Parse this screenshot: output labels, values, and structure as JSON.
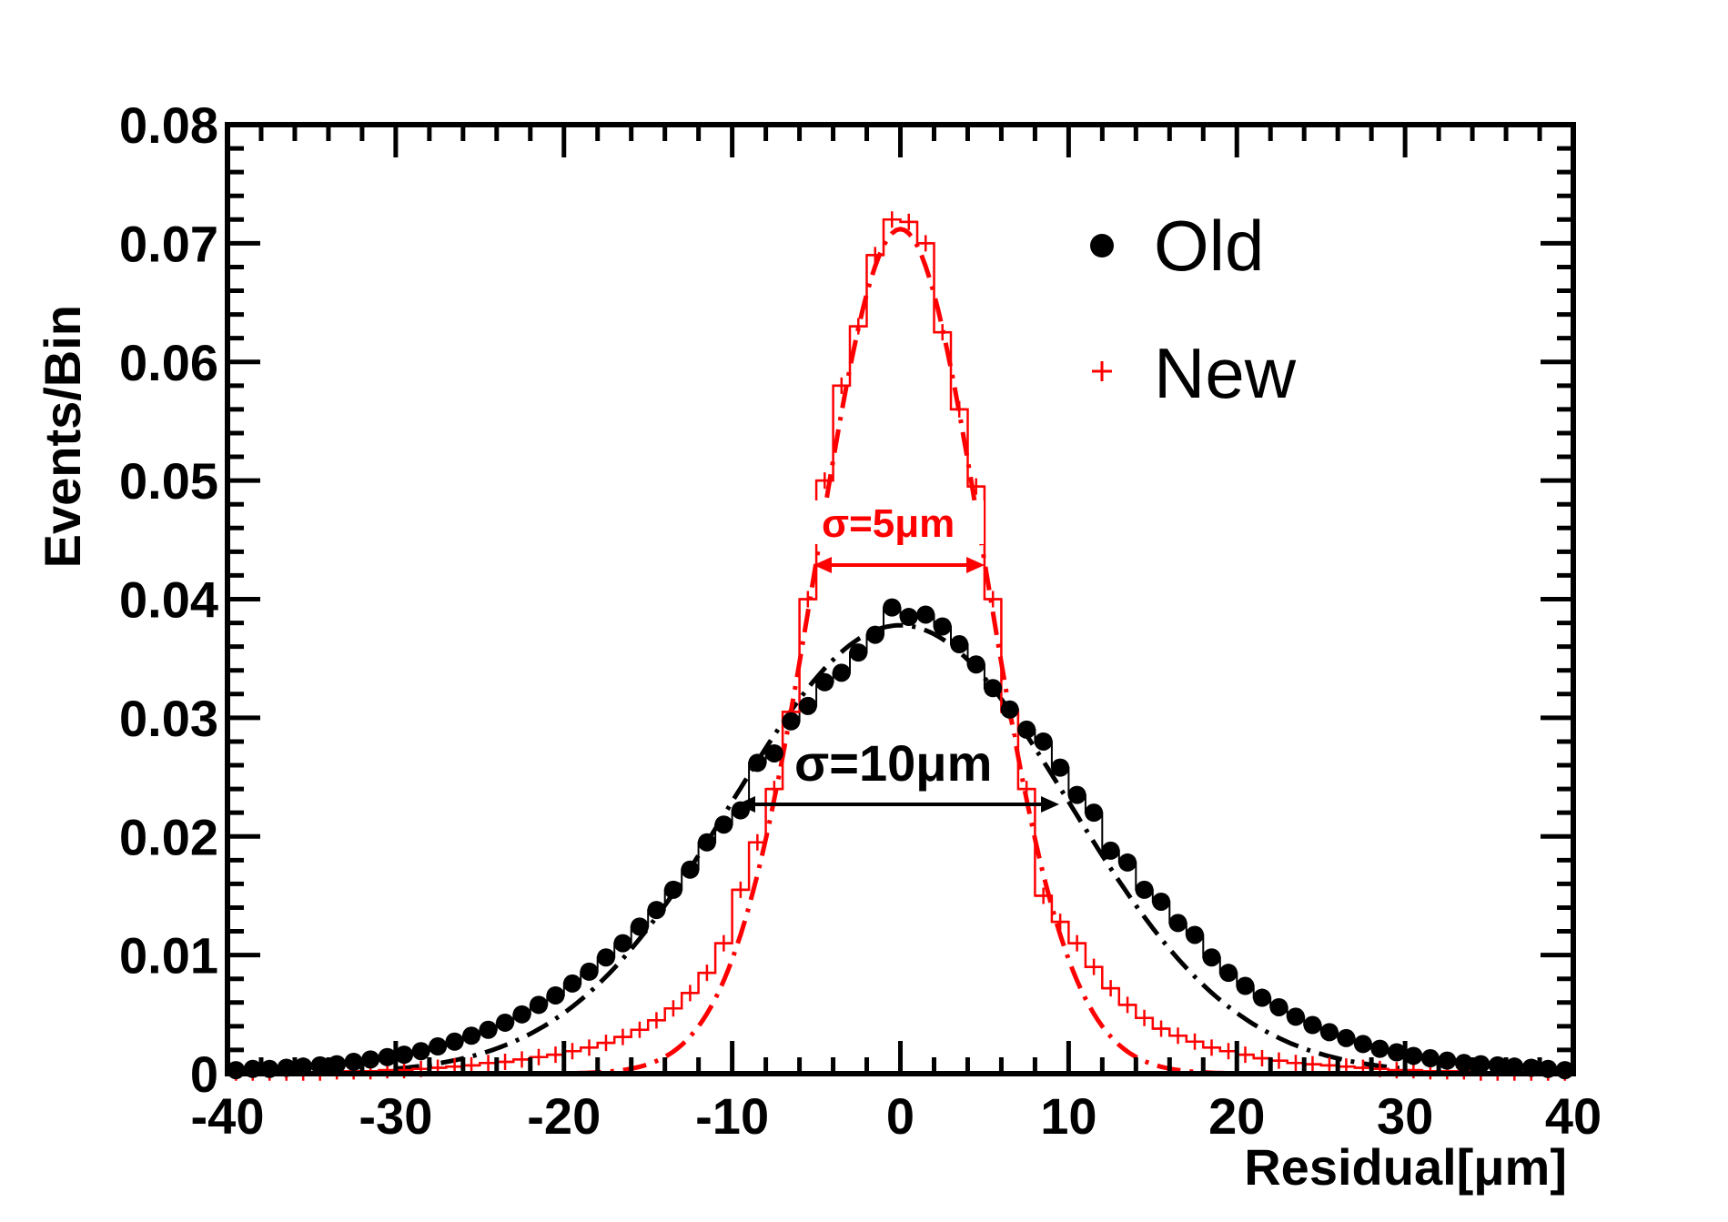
{
  "chart_data": {
    "type": "scatter",
    "xlabel": "Residual[μm]",
    "ylabel": "Events/Bin",
    "xlim": [
      -40,
      40
    ],
    "ylim": [
      0,
      0.08
    ],
    "x_ticks": [
      "-40",
      "-30",
      "-20",
      "-10",
      "0",
      "10",
      "20",
      "30",
      "40"
    ],
    "y_ticks": [
      "0",
      "0.01",
      "0.02",
      "0.03",
      "0.04",
      "0.05",
      "0.06",
      "0.07",
      "0.08"
    ],
    "grid": false,
    "legend_position": "top-right",
    "legend": [
      {
        "label": "Old",
        "marker": "filled-circle",
        "color": "#000000"
      },
      {
        "label": "New",
        "marker": "plus",
        "color": "#ff0000"
      }
    ],
    "annotations": [
      {
        "text": "σ=5μm",
        "color": "#ff0000"
      },
      {
        "text": "σ=10μm",
        "color": "#000000"
      }
    ],
    "series": [
      {
        "name": "Old",
        "color": "#000000",
        "marker": "filled-circle",
        "fit_sigma": 10,
        "fit_amplitude": 0.0378,
        "points": [
          [
            -39.5,
            0.0003
          ],
          [
            -38.5,
            0.0004
          ],
          [
            -37.5,
            0.0004
          ],
          [
            -36.5,
            0.0005
          ],
          [
            -35.5,
            0.0006
          ],
          [
            -34.5,
            0.0007
          ],
          [
            -33.5,
            0.0008
          ],
          [
            -32.5,
            0.001
          ],
          [
            -31.5,
            0.0012
          ],
          [
            -30.5,
            0.0014
          ],
          [
            -29.5,
            0.0016
          ],
          [
            -28.5,
            0.0019
          ],
          [
            -27.5,
            0.0023
          ],
          [
            -26.5,
            0.0027
          ],
          [
            -25.5,
            0.0032
          ],
          [
            -24.5,
            0.0037
          ],
          [
            -23.5,
            0.0043
          ],
          [
            -22.5,
            0.005
          ],
          [
            -21.5,
            0.0058
          ],
          [
            -20.5,
            0.0066
          ],
          [
            -19.5,
            0.0076
          ],
          [
            -18.5,
            0.0086
          ],
          [
            -17.5,
            0.0098
          ],
          [
            -16.5,
            0.011
          ],
          [
            -15.5,
            0.0124
          ],
          [
            -14.5,
            0.0138
          ],
          [
            -13.5,
            0.0155
          ],
          [
            -12.5,
            0.0172
          ],
          [
            -11.5,
            0.0195
          ],
          [
            -10.5,
            0.021
          ],
          [
            -9.5,
            0.0222
          ],
          [
            -8.5,
            0.0262
          ],
          [
            -7.5,
            0.027
          ],
          [
            -6.5,
            0.0297
          ],
          [
            -5.5,
            0.031
          ],
          [
            -4.5,
            0.033
          ],
          [
            -3.5,
            0.0338
          ],
          [
            -2.5,
            0.0355
          ],
          [
            -1.5,
            0.037
          ],
          [
            -0.5,
            0.0393
          ],
          [
            0.5,
            0.0385
          ],
          [
            1.5,
            0.0387
          ],
          [
            2.5,
            0.0377
          ],
          [
            3.5,
            0.0362
          ],
          [
            4.5,
            0.0345
          ],
          [
            5.5,
            0.0325
          ],
          [
            6.5,
            0.0307
          ],
          [
            7.5,
            0.029
          ],
          [
            8.5,
            0.028
          ],
          [
            9.5,
            0.0258
          ],
          [
            10.5,
            0.0235
          ],
          [
            11.5,
            0.022
          ],
          [
            12.5,
            0.0188
          ],
          [
            13.5,
            0.0178
          ],
          [
            14.5,
            0.0155
          ],
          [
            15.5,
            0.0145
          ],
          [
            16.5,
            0.0127
          ],
          [
            17.5,
            0.0117
          ],
          [
            18.5,
            0.0098
          ],
          [
            19.5,
            0.0085
          ],
          [
            20.5,
            0.0074
          ],
          [
            21.5,
            0.0064
          ],
          [
            22.5,
            0.0056
          ],
          [
            23.5,
            0.0048
          ],
          [
            24.5,
            0.0041
          ],
          [
            25.5,
            0.0035
          ],
          [
            26.5,
            0.003
          ],
          [
            27.5,
            0.0025
          ],
          [
            28.5,
            0.0021
          ],
          [
            29.5,
            0.0018
          ],
          [
            30.5,
            0.0015
          ],
          [
            31.5,
            0.0013
          ],
          [
            32.5,
            0.0011
          ],
          [
            33.5,
            0.0009
          ],
          [
            34.5,
            0.0008
          ],
          [
            35.5,
            0.0007
          ],
          [
            36.5,
            0.0006
          ],
          [
            37.5,
            0.0005
          ],
          [
            38.5,
            0.0004
          ],
          [
            39.5,
            0.0003
          ]
        ]
      },
      {
        "name": "New",
        "color": "#ff0000",
        "marker": "plus-step",
        "fit_sigma": 5,
        "fit_amplitude": 0.0712,
        "points": [
          [
            -39.5,
            0.0001
          ],
          [
            -38.5,
            0.0001
          ],
          [
            -37.5,
            0.0001
          ],
          [
            -36.5,
            0.0001
          ],
          [
            -35.5,
            0.0001
          ],
          [
            -34.5,
            0.0001
          ],
          [
            -33.5,
            0.0002
          ],
          [
            -32.5,
            0.0002
          ],
          [
            -31.5,
            0.0002
          ],
          [
            -30.5,
            0.0003
          ],
          [
            -29.5,
            0.0003
          ],
          [
            -28.5,
            0.0004
          ],
          [
            -27.5,
            0.0005
          ],
          [
            -26.5,
            0.0006
          ],
          [
            -25.5,
            0.0007
          ],
          [
            -24.5,
            0.0009
          ],
          [
            -23.5,
            0.001
          ],
          [
            -22.5,
            0.0012
          ],
          [
            -21.5,
            0.0014
          ],
          [
            -20.5,
            0.0016
          ],
          [
            -19.5,
            0.0019
          ],
          [
            -18.5,
            0.0022
          ],
          [
            -17.5,
            0.0026
          ],
          [
            -16.5,
            0.0031
          ],
          [
            -15.5,
            0.0037
          ],
          [
            -14.5,
            0.0045
          ],
          [
            -13.5,
            0.0055
          ],
          [
            -12.5,
            0.0068
          ],
          [
            -11.5,
            0.0085
          ],
          [
            -10.5,
            0.011
          ],
          [
            -9.5,
            0.0155
          ],
          [
            -8.5,
            0.0195
          ],
          [
            -7.5,
            0.024
          ],
          [
            -6.5,
            0.0305
          ],
          [
            -5.5,
            0.04
          ],
          [
            -4.5,
            0.05
          ],
          [
            -3.5,
            0.058
          ],
          [
            -2.5,
            0.063
          ],
          [
            -1.5,
            0.069
          ],
          [
            -0.5,
            0.072
          ],
          [
            0.5,
            0.0718
          ],
          [
            1.5,
            0.07
          ],
          [
            2.5,
            0.0625
          ],
          [
            3.5,
            0.056
          ],
          [
            4.5,
            0.0495
          ],
          [
            5.5,
            0.04
          ],
          [
            6.5,
            0.0305
          ],
          [
            7.5,
            0.024
          ],
          [
            8.5,
            0.015
          ],
          [
            9.5,
            0.0128
          ],
          [
            10.5,
            0.011
          ],
          [
            11.5,
            0.009
          ],
          [
            12.5,
            0.0072
          ],
          [
            13.5,
            0.0058
          ],
          [
            14.5,
            0.0047
          ],
          [
            15.5,
            0.0038
          ],
          [
            16.5,
            0.0032
          ],
          [
            17.5,
            0.0027
          ],
          [
            18.5,
            0.0022
          ],
          [
            19.5,
            0.0019
          ],
          [
            20.5,
            0.0016
          ],
          [
            21.5,
            0.0013
          ],
          [
            22.5,
            0.0011
          ],
          [
            23.5,
            0.0009
          ],
          [
            24.5,
            0.0008
          ],
          [
            25.5,
            0.0007
          ],
          [
            26.5,
            0.0006
          ],
          [
            27.5,
            0.0005
          ],
          [
            28.5,
            0.0004
          ],
          [
            29.5,
            0.0003
          ],
          [
            30.5,
            0.0003
          ],
          [
            31.5,
            0.0002
          ],
          [
            32.5,
            0.0002
          ],
          [
            33.5,
            0.0002
          ],
          [
            34.5,
            0.0001
          ],
          [
            35.5,
            0.0001
          ],
          [
            36.5,
            0.0001
          ],
          [
            37.5,
            0.0001
          ],
          [
            38.5,
            0.0001
          ],
          [
            39.5,
            0.0001
          ]
        ]
      }
    ]
  }
}
